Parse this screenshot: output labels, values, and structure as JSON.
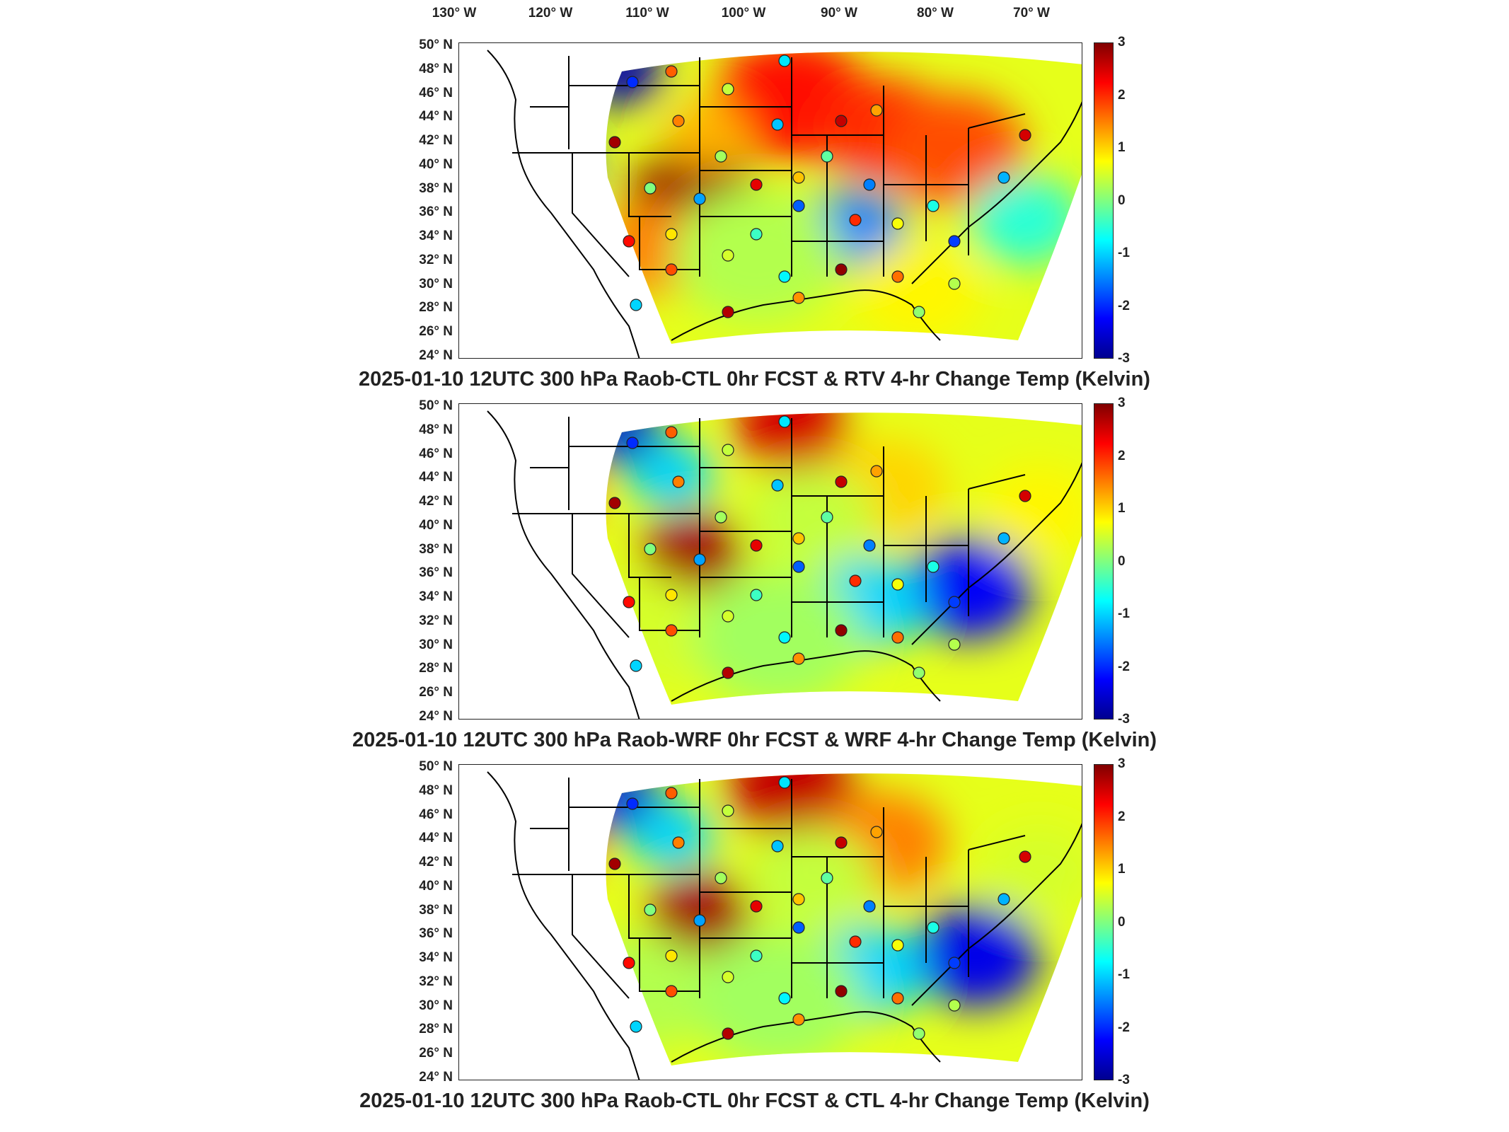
{
  "longitude_labels": [
    "130° W",
    "120° W",
    "110° W",
    "100° W",
    "90° W",
    "80° W",
    "70° W"
  ],
  "latitude_labels": [
    "50° N",
    "48° N",
    "46° N",
    "44° N",
    "42° N",
    "40° N",
    "38° N",
    "36° N",
    "34° N",
    "32° N",
    "30° N",
    "28° N",
    "26° N",
    "24° N"
  ],
  "colorbar": {
    "min": -3,
    "max": 3,
    "ticks": [
      "3",
      "2",
      "1",
      "0",
      "-1",
      "-2",
      "-3"
    ],
    "colormap": [
      "#00008f",
      "#0000ff",
      "#0080ff",
      "#00ffff",
      "#80ff80",
      "#ffff00",
      "#ff8000",
      "#ff0000",
      "#800000"
    ]
  },
  "panels": [
    {
      "title": "2025-01-10 12UTC 300 hPa Raob-CTL 0hr FCST & RTV 4-hr Change Temp (Kelvin)"
    },
    {
      "title": "2025-01-10 12UTC 300 hPa Raob-WRF 0hr FCST & WRF 4-hr Change Temp (Kelvin)"
    },
    {
      "title": "2025-01-10 12UTC 300 hPa Raob-CTL 0hr FCST & CTL 4-hr Change Temp (Kelvin)"
    }
  ]
}
